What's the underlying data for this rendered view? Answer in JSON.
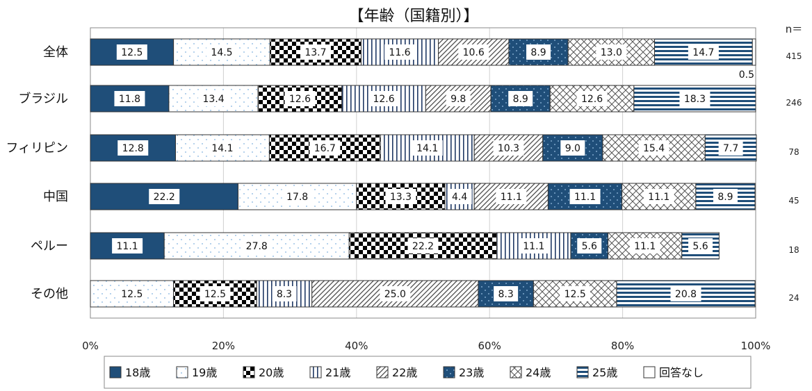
{
  "chart_data": {
    "type": "bar",
    "orientation": "horizontal",
    "stacked": "percent",
    "title": "【年齢（国籍別）】",
    "n_header": "n＝",
    "categories": [
      "全体",
      "ブラジル",
      "フィリピン",
      "中国",
      "ペルー",
      "その他"
    ],
    "n_values": [
      "415",
      "246",
      "78",
      "45",
      "18",
      "24"
    ],
    "xlim": [
      0,
      100
    ],
    "x_ticks": [
      "0%",
      "20%",
      "40%",
      "60%",
      "80%",
      "100%"
    ],
    "grid": true,
    "legend_position": "bottom",
    "series": [
      {
        "name": "18歳",
        "color": "#1f4e79",
        "pattern": "solid",
        "values": [
          12.5,
          11.8,
          12.8,
          22.2,
          11.1,
          0
        ]
      },
      {
        "name": "19歳",
        "color": "#9cc3e6",
        "pattern": "dots",
        "values": [
          14.5,
          13.4,
          14.1,
          17.8,
          27.8,
          12.5
        ]
      },
      {
        "name": "20歳",
        "color": "#000000",
        "pattern": "checker",
        "values": [
          13.7,
          12.6,
          16.7,
          13.3,
          22.2,
          12.5
        ]
      },
      {
        "name": "21歳",
        "color": "#1f3864",
        "pattern": "vertical",
        "values": [
          11.6,
          12.6,
          14.1,
          4.4,
          11.1,
          8.3
        ]
      },
      {
        "name": "22歳",
        "color": "#404040",
        "pattern": "diagonal",
        "values": [
          10.6,
          9.8,
          10.3,
          11.1,
          0,
          25.0
        ]
      },
      {
        "name": "23歳",
        "color": "#1f4e79",
        "pattern": "solid-dots",
        "values": [
          8.9,
          8.9,
          9.0,
          11.1,
          5.6,
          8.3
        ]
      },
      {
        "name": "24歳",
        "color": "#404040",
        "pattern": "crosshatch",
        "values": [
          13.0,
          12.6,
          15.4,
          11.1,
          11.1,
          12.5
        ]
      },
      {
        "name": "25歳",
        "color": "#1f4e79",
        "pattern": "horizontal",
        "values": [
          14.7,
          18.3,
          7.7,
          8.9,
          5.6,
          20.8
        ]
      },
      {
        "name": "回答なし",
        "color": "#ffffff",
        "pattern": "none",
        "values": [
          0.5,
          0,
          0,
          0,
          0,
          0
        ]
      }
    ],
    "annotations": [
      {
        "category": "全体",
        "series": "回答なし",
        "text": "0.5"
      }
    ]
  }
}
